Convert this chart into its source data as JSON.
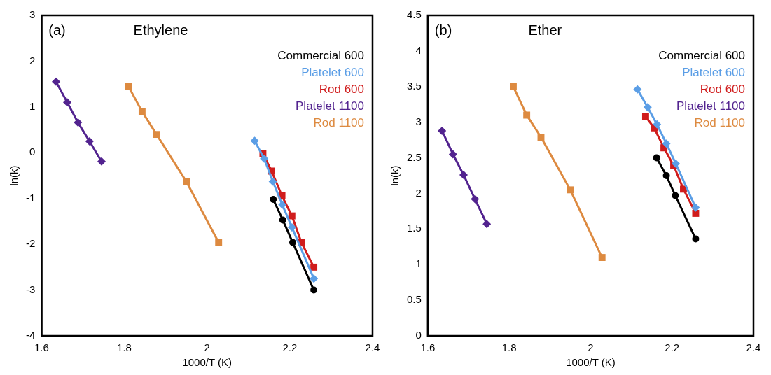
{
  "chart_data": [
    {
      "type": "line",
      "title": "Ethylene",
      "annotations": [
        "(a)"
      ],
      "xlabel": "1000/T (K)",
      "ylabel": "ln(k)",
      "xlim": [
        1.6,
        2.4
      ],
      "xticks": [
        1.6,
        1.8,
        2,
        2.2,
        2.4
      ],
      "ylim": [
        -4,
        3
      ],
      "yticks": [
        -4,
        -3,
        -2,
        -1,
        0,
        1,
        2,
        3
      ],
      "grid": false,
      "legend": "top right",
      "series": [
        {
          "name": "Commercial 600",
          "color": "#000000",
          "marker": "circle",
          "x": [
            2.16,
            2.183,
            2.207,
            2.258
          ],
          "values": [
            -1.02,
            -1.47,
            -1.96,
            -3.0
          ]
        },
        {
          "name": "Platelet 600",
          "color": "#5b9ee6",
          "marker": "diamond",
          "x": [
            2.115,
            2.138,
            2.159,
            2.182,
            2.205,
            2.258
          ],
          "values": [
            0.26,
            -0.13,
            -0.63,
            -1.14,
            -1.63,
            -2.75
          ]
        },
        {
          "name": "Rod 600",
          "color": "#d01c1c",
          "marker": "square",
          "x": [
            2.135,
            2.156,
            2.181,
            2.205,
            2.228,
            2.258
          ],
          "values": [
            -0.02,
            -0.4,
            -0.94,
            -1.38,
            -1.96,
            -2.5
          ]
        },
        {
          "name": "Platelet 1100",
          "color": "#52238f",
          "marker": "diamond",
          "x": [
            1.635,
            1.662,
            1.688,
            1.716,
            1.745
          ],
          "values": [
            1.55,
            1.1,
            0.66,
            0.25,
            -0.19
          ]
        },
        {
          "name": "Rod 1100",
          "color": "#dd8a40",
          "marker": "square",
          "x": [
            1.81,
            1.843,
            1.878,
            1.95,
            2.028
          ],
          "values": [
            1.45,
            0.9,
            0.4,
            -0.63,
            -1.96
          ]
        }
      ]
    },
    {
      "type": "line",
      "title": "Ether",
      "annotations": [
        "(b)"
      ],
      "xlabel": "1000/T (K)",
      "ylabel": "ln(k)",
      "xlim": [
        1.6,
        2.4
      ],
      "xticks": [
        1.6,
        1.8,
        2,
        2.2,
        2.4
      ],
      "ylim": [
        0,
        4.5
      ],
      "yticks": [
        0,
        0.5,
        1,
        1.5,
        2,
        2.5,
        3,
        3.5,
        4,
        4.5
      ],
      "grid": false,
      "legend": "top right",
      "series": [
        {
          "name": "Commercial 600",
          "color": "#000000",
          "marker": "circle",
          "x": [
            2.162,
            2.186,
            2.208,
            2.258
          ],
          "values": [
            2.5,
            2.25,
            1.97,
            1.36
          ]
        },
        {
          "name": "Platelet 600",
          "color": "#5b9ee6",
          "marker": "diamond",
          "x": [
            2.115,
            2.14,
            2.163,
            2.186,
            2.209,
            2.258
          ],
          "values": [
            3.46,
            3.21,
            2.97,
            2.7,
            2.42,
            1.8
          ]
        },
        {
          "name": "Rod 600",
          "color": "#d01c1c",
          "marker": "square",
          "x": [
            2.135,
            2.156,
            2.18,
            2.204,
            2.228,
            2.258
          ],
          "values": [
            3.08,
            2.92,
            2.64,
            2.39,
            2.06,
            1.72
          ]
        },
        {
          "name": "Platelet 1100",
          "color": "#52238f",
          "marker": "diamond",
          "x": [
            1.635,
            1.662,
            1.688,
            1.716,
            1.745
          ],
          "values": [
            2.88,
            2.55,
            2.26,
            1.92,
            1.57
          ]
        },
        {
          "name": "Rod 1100",
          "color": "#dd8a40",
          "marker": "square",
          "x": [
            1.81,
            1.843,
            1.878,
            1.95,
            2.028
          ],
          "values": [
            3.5,
            3.1,
            2.79,
            2.05,
            1.1
          ]
        }
      ]
    }
  ]
}
